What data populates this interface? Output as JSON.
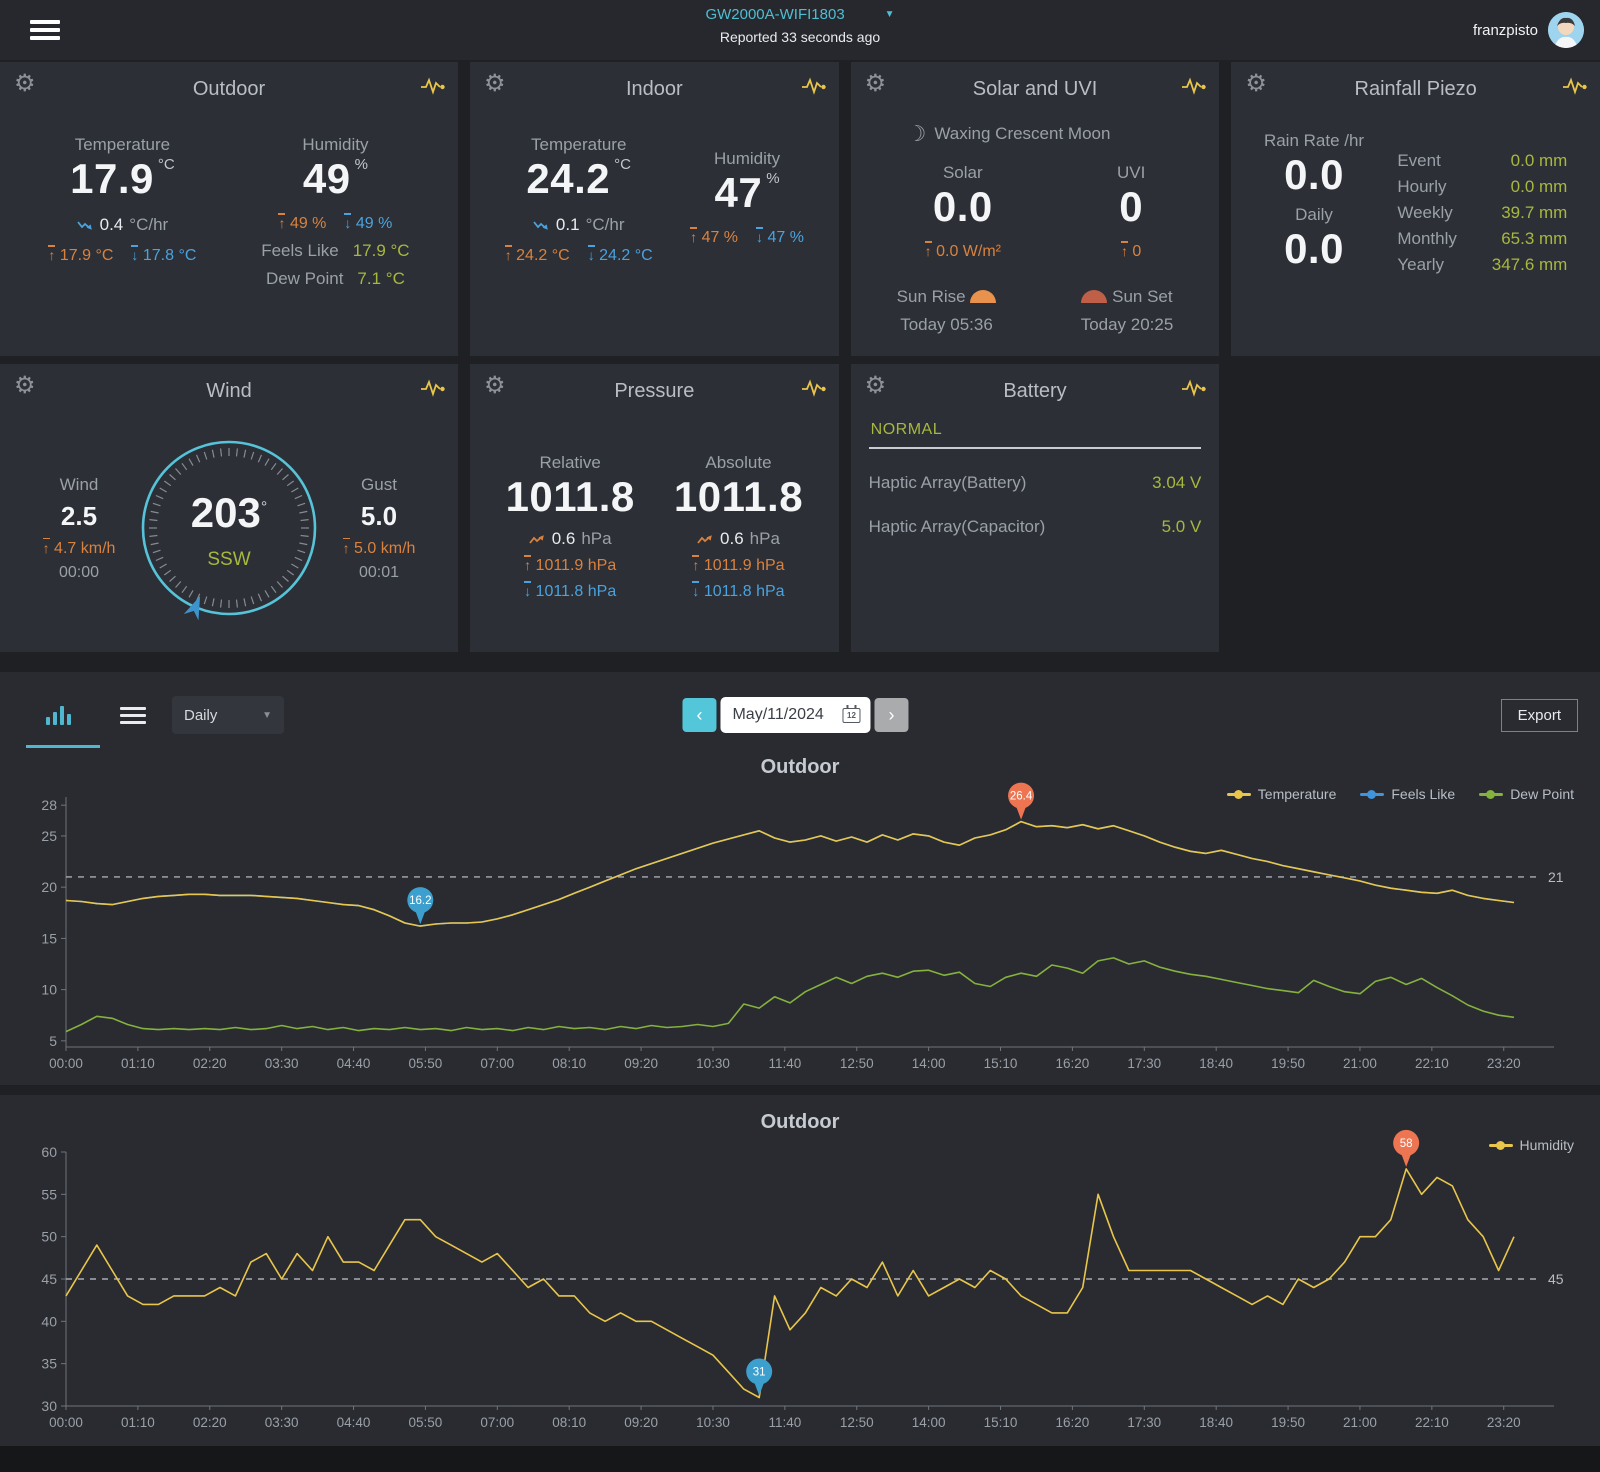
{
  "header": {
    "device_name": "GW2000A-WIFI1803",
    "reported": "Reported 33 seconds ago",
    "username": "franzpisto"
  },
  "cards": {
    "outdoor": {
      "title": "Outdoor",
      "temperature": {
        "label": "Temperature",
        "value": "17.9",
        "unit": "°C",
        "trend_value": "0.4",
        "trend_unit": "°C/hr",
        "max": "17.9 °C",
        "min": "17.8 °C"
      },
      "humidity": {
        "label": "Humidity",
        "value": "49",
        "unit": "%",
        "max": "49 %",
        "min": "49 %"
      },
      "feels_like_label": "Feels Like",
      "feels_like": "17.9 °C",
      "dew_point_label": "Dew Point",
      "dew_point": "7.1 °C"
    },
    "indoor": {
      "title": "Indoor",
      "temperature": {
        "label": "Temperature",
        "value": "24.2",
        "unit": "°C",
        "trend_value": "0.1",
        "trend_unit": "°C/hr",
        "max": "24.2 °C",
        "min": "24.2 °C"
      },
      "humidity": {
        "label": "Humidity",
        "value": "47",
        "unit": "%",
        "max": "47 %",
        "min": "47 %"
      }
    },
    "solar": {
      "title": "Solar and UVI",
      "moon": "Waxing Crescent Moon",
      "solar_label": "Solar",
      "solar_value": "0.0",
      "solar_max": "0.0 W/m²",
      "uvi_label": "UVI",
      "uvi_value": "0",
      "uvi_max": "0",
      "sunrise_label": "Sun Rise",
      "sunrise_time": "Today 05:36",
      "sunset_label": "Sun Set",
      "sunset_time": "Today 20:25"
    },
    "rainfall": {
      "title": "Rainfall Piezo",
      "rate_label": "Rain Rate /hr",
      "rate": "0.0",
      "daily_label": "Daily",
      "daily": "0.0",
      "stats": [
        {
          "label": "Event",
          "value": "0.0 mm"
        },
        {
          "label": "Hourly",
          "value": "0.0 mm"
        },
        {
          "label": "Weekly",
          "value": "39.7 mm"
        },
        {
          "label": "Monthly",
          "value": "65.3 mm"
        },
        {
          "label": "Yearly",
          "value": "347.6 mm"
        }
      ]
    },
    "wind": {
      "title": "Wind",
      "wind_label": "Wind",
      "wind_value": "2.5",
      "wind_max": "4.7 km/h",
      "wind_time": "00:00",
      "direction": "203",
      "compass": "SSW",
      "gust_label": "Gust",
      "gust_value": "5.0",
      "gust_max": "5.0 km/h",
      "gust_time": "00:01"
    },
    "pressure": {
      "title": "Pressure",
      "relative": {
        "label": "Relative",
        "value": "1011.8",
        "trend_value": "0.6",
        "trend_unit": "hPa",
        "max": "1011.9 hPa",
        "min": "1011.8 hPa"
      },
      "absolute": {
        "label": "Absolute",
        "value": "1011.8",
        "trend_value": "0.6",
        "trend_unit": "hPa",
        "max": "1011.9 hPa",
        "min": "1011.8 hPa"
      }
    },
    "battery": {
      "title": "Battery",
      "status": "NORMAL",
      "rows": [
        {
          "label": "Haptic Array(Battery)",
          "value": "3.04 V"
        },
        {
          "label": "Haptic Array(Capacitor)",
          "value": "5.0 V"
        }
      ]
    }
  },
  "toolbar": {
    "mode": "Daily",
    "date": "May/11/2024",
    "calendar_day": "12",
    "export_label": "Export"
  },
  "chart_data": [
    {
      "type": "line",
      "title": "Outdoor",
      "x_step_minutes": 15,
      "x_max": 1410,
      "x_tick_minutes": [
        0,
        70,
        140,
        210,
        280,
        350,
        420,
        490,
        560,
        630,
        700,
        770,
        840,
        910,
        980,
        1050,
        1120,
        1190,
        1260,
        1330,
        1400
      ],
      "x_tick_labels": [
        "00:00",
        "01:10",
        "02:20",
        "03:30",
        "04:40",
        "05:50",
        "07:00",
        "08:10",
        "09:20",
        "10:30",
        "11:40",
        "12:50",
        "14:00",
        "15:10",
        "16:20",
        "17:30",
        "18:40",
        "19:50",
        "21:00",
        "22:10",
        "23:20"
      ],
      "ylim": [
        4.4,
        28.8
      ],
      "yticks": [
        5,
        10,
        15,
        20,
        25,
        28
      ],
      "avg": {
        "value": 21,
        "label": "21"
      },
      "series": [
        {
          "name": "Dew Point",
          "color": "#85b13f",
          "values": [
            5.9,
            6.6,
            7.4,
            7.2,
            6.6,
            6.2,
            6.1,
            6.2,
            6.1,
            6.2,
            6.1,
            6.3,
            6.1,
            6.2,
            6.5,
            6.2,
            6.4,
            6.1,
            6.3,
            6.0,
            6.2,
            6.1,
            6.3,
            6.1,
            6.2,
            6.0,
            6.3,
            6.1,
            6.2,
            6.0,
            6.3,
            6.1,
            6.4,
            6.2,
            6.3,
            6.1,
            6.4,
            6.2,
            6.5,
            6.3,
            6.4,
            6.6,
            6.4,
            6.7,
            8.6,
            8.2,
            9.3,
            8.7,
            9.8,
            10.5,
            11.2,
            10.6,
            11.3,
            11.6,
            11.2,
            11.8,
            11.9,
            11.4,
            11.7,
            10.6,
            10.3,
            11.2,
            11.6,
            11.3,
            12.4,
            12.1,
            11.6,
            12.8,
            13.1,
            12.5,
            12.8,
            12.2,
            11.8,
            11.5,
            11.3,
            11.0,
            10.7,
            10.4,
            10.1,
            9.9,
            9.7,
            10.9,
            10.3,
            9.8,
            9.6,
            10.8,
            11.2,
            10.5,
            11.1,
            10.2,
            9.4,
            8.5,
            7.9,
            7.5,
            7.3
          ]
        },
        {
          "name": "Feels Like",
          "color": "#3f94db",
          "values": [
            18.7,
            18.6,
            18.4,
            18.3,
            18.6,
            18.9,
            19.1,
            19.2,
            19.3,
            19.3,
            19.2,
            19.2,
            19.2,
            19.1,
            19.0,
            18.9,
            18.7,
            18.5,
            18.3,
            18.2,
            17.8,
            17.2,
            16.5,
            16.2,
            16.4,
            16.5,
            16.5,
            16.6,
            16.9,
            17.3,
            17.8,
            18.3,
            18.8,
            19.4,
            20.0,
            20.6,
            21.2,
            21.8,
            22.3,
            22.8,
            23.3,
            23.8,
            24.3,
            24.7,
            25.1,
            25.5,
            24.8,
            24.4,
            24.6,
            25.0,
            24.5,
            24.9,
            24.4,
            25.1,
            24.6,
            25.2,
            25.0,
            24.4,
            24.1,
            24.8,
            25.1,
            25.6,
            26.4,
            25.9,
            26.0,
            25.8,
            26.1,
            25.7,
            26.0,
            25.5,
            25.0,
            24.4,
            23.9,
            23.5,
            23.3,
            23.6,
            23.2,
            22.8,
            22.5,
            22.1,
            21.8,
            21.5,
            21.2,
            20.9,
            20.6,
            20.2,
            19.9,
            19.7,
            19.5,
            19.4,
            19.7,
            19.2,
            18.9,
            18.7,
            18.5
          ]
        },
        {
          "name": "Temperature",
          "color": "#e9c64b",
          "values": [
            18.7,
            18.6,
            18.4,
            18.3,
            18.6,
            18.9,
            19.1,
            19.2,
            19.3,
            19.3,
            19.2,
            19.2,
            19.2,
            19.1,
            19.0,
            18.9,
            18.7,
            18.5,
            18.3,
            18.2,
            17.8,
            17.2,
            16.5,
            16.2,
            16.4,
            16.5,
            16.5,
            16.6,
            16.9,
            17.3,
            17.8,
            18.3,
            18.8,
            19.4,
            20.0,
            20.6,
            21.2,
            21.8,
            22.3,
            22.8,
            23.3,
            23.8,
            24.3,
            24.7,
            25.1,
            25.5,
            24.8,
            24.4,
            24.6,
            25.0,
            24.5,
            24.9,
            24.4,
            25.1,
            24.6,
            25.2,
            25.0,
            24.4,
            24.1,
            24.8,
            25.1,
            25.6,
            26.4,
            25.9,
            26.0,
            25.8,
            26.1,
            25.7,
            26.0,
            25.5,
            25.0,
            24.4,
            23.9,
            23.5,
            23.3,
            23.6,
            23.2,
            22.8,
            22.5,
            22.1,
            21.8,
            21.5,
            21.2,
            20.9,
            20.6,
            20.2,
            19.9,
            19.7,
            19.5,
            19.4,
            19.7,
            19.2,
            18.9,
            18.7,
            18.5
          ]
        }
      ],
      "legend_order": [
        2,
        1,
        0
      ],
      "markers": [
        {
          "series": 2,
          "index": 62,
          "label": "26.4",
          "color": "#ed7551"
        },
        {
          "series": 2,
          "index": 23,
          "label": "16.2",
          "color": "#3d9fcd"
        }
      ]
    },
    {
      "type": "line",
      "title": "Outdoor",
      "x_step_minutes": 15,
      "x_max": 1410,
      "x_tick_minutes": [
        0,
        70,
        140,
        210,
        280,
        350,
        420,
        490,
        560,
        630,
        700,
        770,
        840,
        910,
        980,
        1050,
        1120,
        1190,
        1260,
        1330,
        1400
      ],
      "x_tick_labels": [
        "00:00",
        "01:10",
        "02:20",
        "03:30",
        "04:40",
        "05:50",
        "07:00",
        "08:10",
        "09:20",
        "10:30",
        "11:40",
        "12:50",
        "14:00",
        "15:10",
        "16:20",
        "17:30",
        "18:40",
        "19:50",
        "21:00",
        "22:10",
        "23:20"
      ],
      "ylim": [
        30,
        60
      ],
      "yticks": [
        30,
        35,
        40,
        45,
        50,
        55,
        60
      ],
      "avg": {
        "value": 45,
        "label": "45"
      },
      "series": [
        {
          "name": "Humidity",
          "color": "#e9c64b",
          "values": [
            43,
            46,
            49,
            46,
            43,
            42,
            42,
            43,
            43,
            43,
            44,
            43,
            47,
            48,
            45,
            48,
            46,
            50,
            47,
            47,
            46,
            49,
            52,
            52,
            50,
            49,
            48,
            47,
            48,
            46,
            44,
            45,
            43,
            43,
            41,
            40,
            41,
            40,
            40,
            39,
            38,
            37,
            36,
            34,
            32,
            31,
            43,
            39,
            41,
            44,
            43,
            45,
            44,
            47,
            43,
            46,
            43,
            44,
            45,
            44,
            46,
            45,
            43,
            42,
            41,
            41,
            44,
            55,
            50,
            46,
            46,
            46,
            46,
            46,
            45,
            44,
            43,
            42,
            43,
            42,
            45,
            44,
            45,
            47,
            50,
            50,
            52,
            58,
            55,
            57,
            56,
            52,
            50,
            46,
            50
          ]
        }
      ],
      "legend_order": [
        0
      ],
      "markers": [
        {
          "series": 0,
          "index": 87,
          "label": "58",
          "color": "#ed7551"
        },
        {
          "series": 0,
          "index": 45,
          "label": "31",
          "color": "#3d9fcd"
        }
      ]
    }
  ]
}
